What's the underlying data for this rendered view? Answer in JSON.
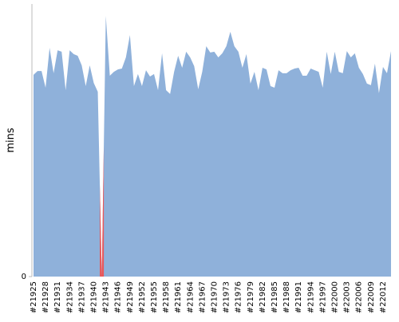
{
  "chart_data": {
    "type": "area",
    "y_label": "mins",
    "categories": [
      "#21925",
      null,
      null,
      "#21928",
      null,
      null,
      "#21931",
      null,
      null,
      "#21934",
      null,
      null,
      "#21937",
      null,
      null,
      "#21940",
      null,
      null,
      "#21943",
      null,
      null,
      "#21946",
      null,
      null,
      "#21949",
      null,
      null,
      "#21952",
      null,
      null,
      "#21955",
      null,
      null,
      "#21958",
      null,
      null,
      "#21961",
      null,
      null,
      "#21964",
      null,
      null,
      "#21967",
      null,
      null,
      "#21970",
      null,
      null,
      "#21973",
      null,
      null,
      "#21976",
      null,
      null,
      "#21979",
      null,
      null,
      "#21982",
      null,
      null,
      "#21985",
      null,
      null,
      "#21988",
      null,
      null,
      "#21991",
      null,
      null,
      "#21994",
      null,
      null,
      "#21997",
      null,
      null,
      "#22000",
      null,
      null,
      "#22003",
      null,
      null,
      "#22006",
      null,
      null,
      "#22009",
      null,
      null,
      "#22012",
      null,
      null
    ],
    "values": [
      74,
      75.4,
      75.4,
      69.3,
      83.9,
      74.6,
      83,
      82.5,
      68.4,
      83,
      81.6,
      81,
      77.5,
      69.9,
      77.5,
      71,
      67.8,
      0,
      95.6,
      73.7,
      75.1,
      76,
      76.3,
      80.4,
      88.6,
      69.9,
      74.3,
      69.9,
      75.7,
      73.4,
      74.3,
      68.4,
      81.9,
      68.4,
      67,
      75.1,
      81,
      76.6,
      82.5,
      80.4,
      77.2,
      68.7,
      75.1,
      84.5,
      82.2,
      82.5,
      80.4,
      81.9,
      84.5,
      89.8,
      84.5,
      82.5,
      76.6,
      81.6,
      70.8,
      75.1,
      68.4,
      76.6,
      76,
      69.9,
      69.3,
      75.7,
      74.6,
      74.6,
      75.7,
      76.3,
      76.6,
      73.7,
      73.7,
      76.3,
      75.7,
      75.1,
      69.3,
      82.5,
      74.3,
      82.5,
      75.1,
      74.6,
      82.7,
      80.4,
      81.9,
      76.6,
      74.3,
      70.8,
      70.2,
      78.1,
      67.3,
      76.9,
      74.6,
      82.7
    ],
    "color": "#8fb1da",
    "highlight": {
      "color": "#e8575a",
      "indices": [
        17
      ]
    },
    "ylim": [
      0,
      100
    ],
    "yticks": [
      0
    ]
  }
}
